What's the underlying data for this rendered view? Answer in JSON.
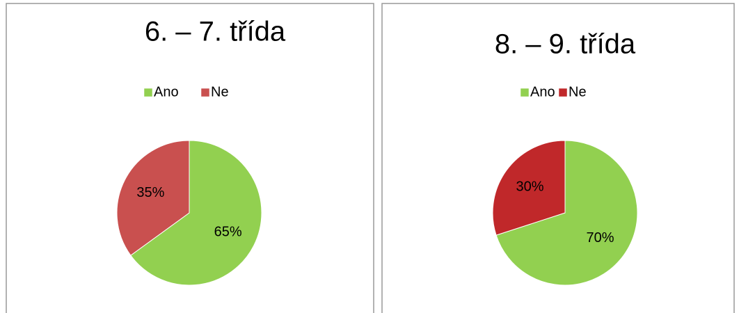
{
  "chart_data": [
    {
      "type": "pie",
      "title": "6. – 7. třída",
      "categories": [
        "Ano",
        "Ne"
      ],
      "values": [
        65,
        35
      ],
      "value_labels": [
        "65%",
        "35%"
      ],
      "colors": [
        "#92d050",
        "#c9504f"
      ],
      "legend": "top"
    },
    {
      "type": "pie",
      "title": "8. – 9. třída",
      "categories": [
        "Ano",
        "Ne"
      ],
      "values": [
        70,
        30
      ],
      "value_labels": [
        "70%",
        "30%"
      ],
      "colors": [
        "#92d050",
        "#c0282a"
      ],
      "legend": "top"
    }
  ]
}
